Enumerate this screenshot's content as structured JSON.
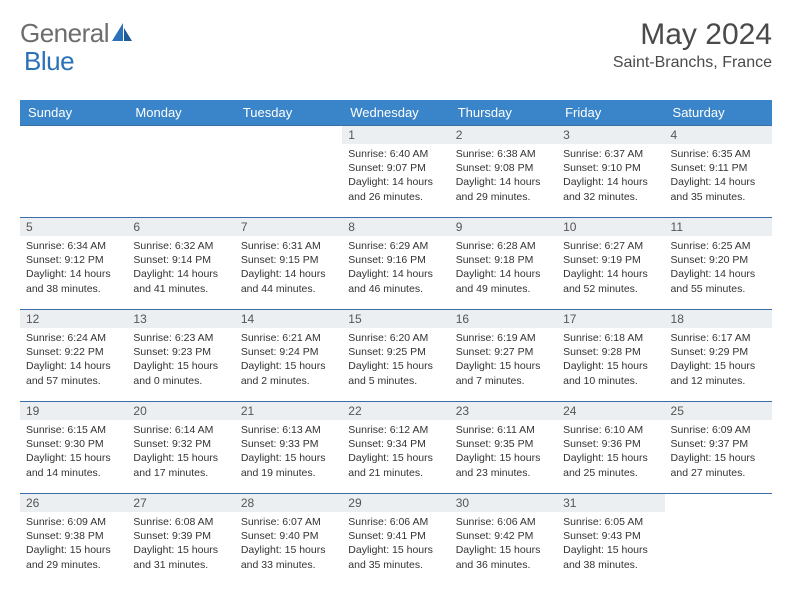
{
  "logo": {
    "part1": "General",
    "part2": "Blue"
  },
  "title": "May 2024",
  "location": "Saint-Branchs, France",
  "colors": {
    "header_bg": "#3a85c9",
    "header_fg": "#ffffff",
    "week_border": "#3a6ea5",
    "daynum_bg": "#eceff1",
    "logo_gray": "#6d6d6d",
    "logo_blue": "#2a71b8",
    "text": "#333333",
    "title_color": "#4a4a4a"
  },
  "weekdays": [
    "Sunday",
    "Monday",
    "Tuesday",
    "Wednesday",
    "Thursday",
    "Friday",
    "Saturday"
  ],
  "weeks": [
    [
      null,
      null,
      null,
      {
        "n": "1",
        "sr": "Sunrise: 6:40 AM",
        "ss": "Sunset: 9:07 PM",
        "d1": "Daylight: 14 hours",
        "d2": "and 26 minutes."
      },
      {
        "n": "2",
        "sr": "Sunrise: 6:38 AM",
        "ss": "Sunset: 9:08 PM",
        "d1": "Daylight: 14 hours",
        "d2": "and 29 minutes."
      },
      {
        "n": "3",
        "sr": "Sunrise: 6:37 AM",
        "ss": "Sunset: 9:10 PM",
        "d1": "Daylight: 14 hours",
        "d2": "and 32 minutes."
      },
      {
        "n": "4",
        "sr": "Sunrise: 6:35 AM",
        "ss": "Sunset: 9:11 PM",
        "d1": "Daylight: 14 hours",
        "d2": "and 35 minutes."
      }
    ],
    [
      {
        "n": "5",
        "sr": "Sunrise: 6:34 AM",
        "ss": "Sunset: 9:12 PM",
        "d1": "Daylight: 14 hours",
        "d2": "and 38 minutes."
      },
      {
        "n": "6",
        "sr": "Sunrise: 6:32 AM",
        "ss": "Sunset: 9:14 PM",
        "d1": "Daylight: 14 hours",
        "d2": "and 41 minutes."
      },
      {
        "n": "7",
        "sr": "Sunrise: 6:31 AM",
        "ss": "Sunset: 9:15 PM",
        "d1": "Daylight: 14 hours",
        "d2": "and 44 minutes."
      },
      {
        "n": "8",
        "sr": "Sunrise: 6:29 AM",
        "ss": "Sunset: 9:16 PM",
        "d1": "Daylight: 14 hours",
        "d2": "and 46 minutes."
      },
      {
        "n": "9",
        "sr": "Sunrise: 6:28 AM",
        "ss": "Sunset: 9:18 PM",
        "d1": "Daylight: 14 hours",
        "d2": "and 49 minutes."
      },
      {
        "n": "10",
        "sr": "Sunrise: 6:27 AM",
        "ss": "Sunset: 9:19 PM",
        "d1": "Daylight: 14 hours",
        "d2": "and 52 minutes."
      },
      {
        "n": "11",
        "sr": "Sunrise: 6:25 AM",
        "ss": "Sunset: 9:20 PM",
        "d1": "Daylight: 14 hours",
        "d2": "and 55 minutes."
      }
    ],
    [
      {
        "n": "12",
        "sr": "Sunrise: 6:24 AM",
        "ss": "Sunset: 9:22 PM",
        "d1": "Daylight: 14 hours",
        "d2": "and 57 minutes."
      },
      {
        "n": "13",
        "sr": "Sunrise: 6:23 AM",
        "ss": "Sunset: 9:23 PM",
        "d1": "Daylight: 15 hours",
        "d2": "and 0 minutes."
      },
      {
        "n": "14",
        "sr": "Sunrise: 6:21 AM",
        "ss": "Sunset: 9:24 PM",
        "d1": "Daylight: 15 hours",
        "d2": "and 2 minutes."
      },
      {
        "n": "15",
        "sr": "Sunrise: 6:20 AM",
        "ss": "Sunset: 9:25 PM",
        "d1": "Daylight: 15 hours",
        "d2": "and 5 minutes."
      },
      {
        "n": "16",
        "sr": "Sunrise: 6:19 AM",
        "ss": "Sunset: 9:27 PM",
        "d1": "Daylight: 15 hours",
        "d2": "and 7 minutes."
      },
      {
        "n": "17",
        "sr": "Sunrise: 6:18 AM",
        "ss": "Sunset: 9:28 PM",
        "d1": "Daylight: 15 hours",
        "d2": "and 10 minutes."
      },
      {
        "n": "18",
        "sr": "Sunrise: 6:17 AM",
        "ss": "Sunset: 9:29 PM",
        "d1": "Daylight: 15 hours",
        "d2": "and 12 minutes."
      }
    ],
    [
      {
        "n": "19",
        "sr": "Sunrise: 6:15 AM",
        "ss": "Sunset: 9:30 PM",
        "d1": "Daylight: 15 hours",
        "d2": "and 14 minutes."
      },
      {
        "n": "20",
        "sr": "Sunrise: 6:14 AM",
        "ss": "Sunset: 9:32 PM",
        "d1": "Daylight: 15 hours",
        "d2": "and 17 minutes."
      },
      {
        "n": "21",
        "sr": "Sunrise: 6:13 AM",
        "ss": "Sunset: 9:33 PM",
        "d1": "Daylight: 15 hours",
        "d2": "and 19 minutes."
      },
      {
        "n": "22",
        "sr": "Sunrise: 6:12 AM",
        "ss": "Sunset: 9:34 PM",
        "d1": "Daylight: 15 hours",
        "d2": "and 21 minutes."
      },
      {
        "n": "23",
        "sr": "Sunrise: 6:11 AM",
        "ss": "Sunset: 9:35 PM",
        "d1": "Daylight: 15 hours",
        "d2": "and 23 minutes."
      },
      {
        "n": "24",
        "sr": "Sunrise: 6:10 AM",
        "ss": "Sunset: 9:36 PM",
        "d1": "Daylight: 15 hours",
        "d2": "and 25 minutes."
      },
      {
        "n": "25",
        "sr": "Sunrise: 6:09 AM",
        "ss": "Sunset: 9:37 PM",
        "d1": "Daylight: 15 hours",
        "d2": "and 27 minutes."
      }
    ],
    [
      {
        "n": "26",
        "sr": "Sunrise: 6:09 AM",
        "ss": "Sunset: 9:38 PM",
        "d1": "Daylight: 15 hours",
        "d2": "and 29 minutes."
      },
      {
        "n": "27",
        "sr": "Sunrise: 6:08 AM",
        "ss": "Sunset: 9:39 PM",
        "d1": "Daylight: 15 hours",
        "d2": "and 31 minutes."
      },
      {
        "n": "28",
        "sr": "Sunrise: 6:07 AM",
        "ss": "Sunset: 9:40 PM",
        "d1": "Daylight: 15 hours",
        "d2": "and 33 minutes."
      },
      {
        "n": "29",
        "sr": "Sunrise: 6:06 AM",
        "ss": "Sunset: 9:41 PM",
        "d1": "Daylight: 15 hours",
        "d2": "and 35 minutes."
      },
      {
        "n": "30",
        "sr": "Sunrise: 6:06 AM",
        "ss": "Sunset: 9:42 PM",
        "d1": "Daylight: 15 hours",
        "d2": "and 36 minutes."
      },
      {
        "n": "31",
        "sr": "Sunrise: 6:05 AM",
        "ss": "Sunset: 9:43 PM",
        "d1": "Daylight: 15 hours",
        "d2": "and 38 minutes."
      },
      null
    ]
  ]
}
